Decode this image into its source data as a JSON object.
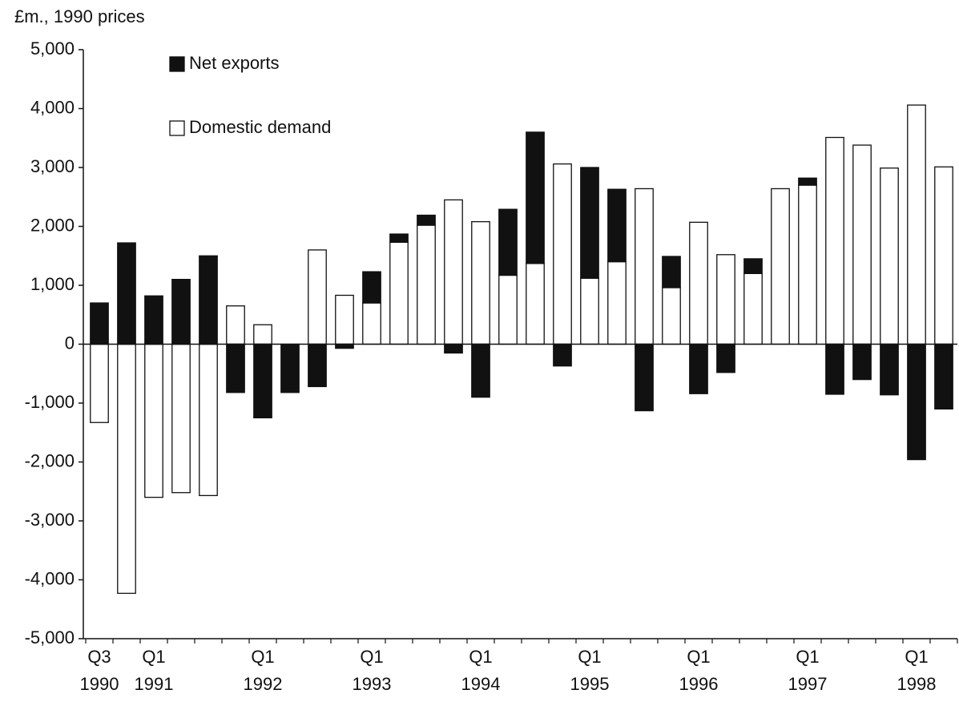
{
  "chart_data": {
    "type": "bar",
    "stacked": true,
    "y_label": "£m., 1990 prices",
    "categories": [
      "Q3 1990",
      null,
      "Q1 1991",
      null,
      null,
      null,
      "Q1 1992",
      null,
      null,
      null,
      "Q1 1993",
      null,
      null,
      null,
      "Q1 1994",
      null,
      null,
      null,
      "Q1 1995",
      null,
      null,
      null,
      "Q1 1996",
      null,
      null,
      null,
      "Q1 1997",
      null,
      null,
      null,
      "Q1 1998",
      null
    ],
    "series": [
      {
        "name": "Domestic demand",
        "color": "#ffffff",
        "values": [
          -1330,
          -4230,
          -2600,
          -2520,
          -2570,
          650,
          330,
          0,
          1600,
          830,
          700,
          1730,
          2020,
          2450,
          2080,
          1170,
          1370,
          3060,
          1120,
          1400,
          2640,
          960,
          2070,
          1520,
          1200,
          2640,
          2700,
          3510,
          3380,
          2990,
          4060,
          3010
        ]
      },
      {
        "name": "Net exports",
        "color": "#111111",
        "values": [
          700,
          1720,
          820,
          1100,
          1500,
          -820,
          -1250,
          -820,
          -720,
          -70,
          530,
          140,
          170,
          -150,
          -900,
          1120,
          2230,
          -370,
          1880,
          1230,
          -1130,
          530,
          -840,
          -480,
          250,
          0,
          120,
          -850,
          -600,
          -860,
          -1960,
          -1100
        ]
      }
    ],
    "ylim": [
      -5000,
      5000
    ],
    "yticks": [
      {
        "value": -5000,
        "label": "-5,000"
      },
      {
        "value": -4000,
        "label": "-4,000"
      },
      {
        "value": -3000,
        "label": "-3,000"
      },
      {
        "value": -2000,
        "label": "-2,000"
      },
      {
        "value": -1000,
        "label": "-1,000"
      },
      0,
      {
        "value": 1000,
        "label": "1,000"
      },
      {
        "value": 2000,
        "label": "2,000"
      },
      {
        "value": 3000,
        "label": "3,000"
      },
      {
        "value": 4000,
        "label": "4,000"
      },
      {
        "value": 5000,
        "label": "5,000"
      }
    ],
    "grid": false
  }
}
